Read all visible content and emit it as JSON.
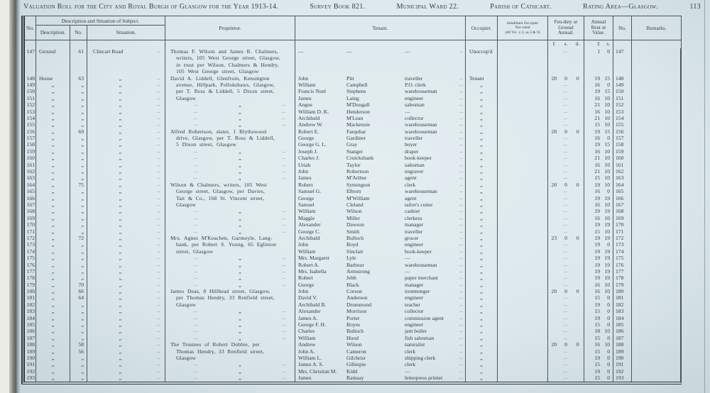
{
  "page": {
    "title_main": "Valuation Roll for the City and Royal Burgh of Glasgow for the Year 1913-14.",
    "title_survey": "Survey Book 821.",
    "title_ward": "Municipal Ward 22.",
    "title_parish": "Parish of Cathcart.",
    "title_rating": "Rating Area—Glasgow.",
    "page_number": "113"
  },
  "glyphs": {
    "ditto": "„",
    "dots": "..",
    "dash": "—"
  },
  "header": {
    "no": "No.",
    "desc_group": "Description and Situation of Subject.",
    "description": "Description.",
    "no2": "No.",
    "situation": "Situation.",
    "proprietor": "Proprietor.",
    "tenant": "Tenant.",
    "occupier": "Occupier.",
    "inhabitant_line1": "Inhabitant Occupier",
    "inhabitant_line2": "Not rated",
    "inhabitant_line3": "(48 Vic. c.3, ss.3 & 9)",
    "feu": "Feu-duty or Ground Annual.",
    "rent": "Annual Rent or Value.",
    "no_right": "No.",
    "remarks": "Remarks.",
    "feu_units": [
      "£",
      "s.",
      "d."
    ],
    "rent_units": [
      "£",
      "s."
    ]
  },
  "rows": [
    {
      "no": "147",
      "d": "Ground",
      "n2": "61",
      "s": "Clincart Road",
      "p": "Thomas F. Wilson and James R. Chalmers,",
      "ps": "t",
      "t": [
        "—",
        "—",
        "—"
      ],
      "o": "Unoccup'd",
      "r": [
        "1",
        "0"
      ]
    },
    {
      "p": "writers, 105 West George street, Glasgow,",
      "ps": "c"
    },
    {
      "p": "in trust per Wilson, Chalmers & Hendry,",
      "ps": "c"
    },
    {
      "p": "105 West George street, Glasgow",
      "ps": "c"
    },
    {
      "no": "148",
      "d": "House",
      "n2": "63",
      "p": "David A. Liddell, Glenfruin, Kensington",
      "ps": "t",
      "t": [
        "John",
        "Pitt",
        "traveller"
      ],
      "o": "Tenant",
      "f": [
        "20",
        "0",
        "0"
      ],
      "r": [
        "19",
        "15"
      ]
    },
    {
      "no": "149",
      "p": "avenue, Hillpark, Pollokshaws, Glasgow,",
      "ps": "c",
      "t": [
        "William",
        "Campbell",
        "P.O. clerk"
      ],
      "r": [
        "16",
        "0"
      ]
    },
    {
      "no": "150",
      "p": "per T. Ross & Liddell, 5 Dixon street,",
      "ps": "c",
      "t": [
        "Francis Noel",
        "Stephens",
        "warehouseman"
      ],
      "r": [
        "19",
        "15"
      ]
    },
    {
      "no": "151",
      "p": "Glasgow",
      "ps": "c",
      "t": [
        "James",
        "Laing",
        "engineer"
      ],
      "r": [
        "16",
        "10"
      ]
    },
    {
      "no": "152",
      "t": [
        "Angus",
        "M'Dougall",
        "salesman"
      ],
      "r": [
        "21",
        "10"
      ]
    },
    {
      "no": "153",
      "t": [
        "William D. K.",
        "Henderson",
        "—"
      ],
      "r": [
        "16",
        "10"
      ]
    },
    {
      "no": "154",
      "t": [
        "Archibald",
        "M'Lean",
        "collector"
      ],
      "r": [
        "21",
        "10"
      ]
    },
    {
      "no": "155",
      "t": [
        "Andrew W.",
        "Mackenzie",
        "warehouseman"
      ],
      "r": [
        "15",
        "10"
      ]
    },
    {
      "no": "156",
      "n2": "69",
      "p": "Alfred Robertson, slater, 1 Blythswood",
      "ps": "t",
      "t": [
        "Robert E.",
        "Farquhar",
        "warehouseman"
      ],
      "f": [
        "20",
        "0",
        "0"
      ],
      "r": [
        "19",
        "15"
      ]
    },
    {
      "no": "157",
      "p": "drive, Glasgow, per T. Ross & Liddell,",
      "ps": "c",
      "t": [
        "George",
        "Gardiner",
        "traveller"
      ],
      "r": [
        "16",
        "0"
      ]
    },
    {
      "no": "158",
      "p": "5 Dixon street, Glasgow",
      "ps": "c",
      "t": [
        "George G. L.",
        "Gray",
        "buyer"
      ],
      "r": [
        "19",
        "15"
      ]
    },
    {
      "no": "159",
      "t": [
        "Joseph J.",
        "Stanger",
        "draper"
      ],
      "r": [
        "16",
        "10"
      ]
    },
    {
      "no": "160",
      "t": [
        "Charles J.",
        "Cruickshank",
        "book-keeper"
      ],
      "r": [
        "21",
        "10"
      ]
    },
    {
      "no": "161",
      "t": [
        "Uriah",
        "Taylor",
        "salesman"
      ],
      "r": [
        "16",
        "10"
      ]
    },
    {
      "no": "162",
      "t": [
        "John",
        "Robertson",
        "engraver"
      ],
      "r": [
        "21",
        "10"
      ]
    },
    {
      "no": "163",
      "t": [
        "James",
        "M'Arthur",
        "agent"
      ],
      "r": [
        "15",
        "10"
      ]
    },
    {
      "no": "164",
      "n2": "75",
      "p": "Wilson & Chalmers, writers, 105 West",
      "ps": "t",
      "t": [
        "Robert",
        "Symington",
        "clerk"
      ],
      "f": [
        "20",
        "0",
        "0"
      ],
      "r": [
        "19",
        "10"
      ]
    },
    {
      "no": "165",
      "p": "George street, Glasgow, per Davies,",
      "ps": "c",
      "t": [
        "Samuel G.",
        "Elborn",
        "warehouseman"
      ],
      "r": [
        "16",
        "0"
      ]
    },
    {
      "no": "166",
      "p": "Tait & Co., 168 St. Vincent street,",
      "ps": "c",
      "t": [
        "George",
        "M'William",
        "agent"
      ],
      "r": [
        "19",
        "19"
      ]
    },
    {
      "no": "167",
      "p": "Glasgow",
      "ps": "c",
      "t": [
        "Samuel",
        "Cleland",
        "tailor's cutter"
      ],
      "r": [
        "16",
        "10"
      ]
    },
    {
      "no": "168",
      "t": [
        "William",
        "Wilson",
        "cashier"
      ],
      "r": [
        "19",
        "19"
      ]
    },
    {
      "no": "169",
      "t": [
        "Maggie",
        "Miller",
        "clerkess"
      ],
      "r": [
        "16",
        "10"
      ]
    },
    {
      "no": "170",
      "t": [
        "Alexander",
        "Dawson",
        "manager"
      ],
      "r": [
        "19",
        "19"
      ]
    },
    {
      "no": "171",
      "t": [
        "George C.",
        "Smith",
        "traveller"
      ],
      "r": [
        "15",
        "10"
      ]
    },
    {
      "no": "172",
      "n2": "72",
      "p": "Mrs. Agnes M'Keachen, Garmoyle, Lang-",
      "ps": "t",
      "t": [
        "Archibald",
        "Bulloch",
        "grocer"
      ],
      "f": [
        "23",
        "0",
        "0"
      ],
      "r": [
        "19",
        "19"
      ]
    },
    {
      "no": "173",
      "p": "bank, per Robert S. Young, 65 Eglinton",
      "ps": "c",
      "t": [
        "John",
        "Boyd",
        "engineer"
      ],
      "r": [
        "19",
        "0"
      ]
    },
    {
      "no": "174",
      "p": "street, Glasgow",
      "ps": "c",
      "t": [
        "William",
        "Sinclair",
        "book-keeper"
      ],
      "r": [
        "19",
        "19"
      ]
    },
    {
      "no": "175",
      "t": [
        "Mrs. Margaret",
        "Lyle",
        "—"
      ],
      "r": [
        "19",
        "19"
      ]
    },
    {
      "no": "176",
      "t": [
        "Robert A.",
        "Barbour",
        "warehouseman"
      ],
      "r": [
        "19",
        "19"
      ]
    },
    {
      "no": "177",
      "t": [
        "Mrs. Isabella",
        "Armstrong",
        "—"
      ],
      "r": [
        "19",
        "19"
      ]
    },
    {
      "no": "178",
      "t": [
        "Robert",
        "Jebb",
        "paper merchant"
      ],
      "r": [
        "19",
        "19"
      ]
    },
    {
      "no": "179",
      "n2": "70",
      "t": [
        "George",
        "Black",
        "manager"
      ],
      "r": [
        "16",
        "10"
      ]
    },
    {
      "no": "180",
      "n2": "66",
      "p": "James Deas, 8 Hillhead street, Glasgow,",
      "ps": "t",
      "t": [
        "John",
        "Corson",
        "ironmonger"
      ],
      "f": [
        "20",
        "0",
        "0"
      ],
      "r": [
        "16",
        "10"
      ]
    },
    {
      "no": "181",
      "n2": "64",
      "p": "per Thomas Hendry, 33 Renfield street,",
      "ps": "c",
      "t": [
        "David V.",
        "Anderson",
        "engineer"
      ],
      "r": [
        "15",
        "0"
      ]
    },
    {
      "no": "182",
      "p": "Glasgow",
      "ps": "c",
      "t": [
        "Archibald B.",
        "Drummond",
        "teacher"
      ],
      "r": [
        "19",
        "0"
      ]
    },
    {
      "no": "183",
      "t": [
        "Alexander",
        "Morrison",
        "collector"
      ],
      "r": [
        "15",
        "0"
      ]
    },
    {
      "no": "184",
      "t": [
        "James A.",
        "Porter",
        "commission agent"
      ],
      "r": [
        "19",
        "0"
      ]
    },
    {
      "no": "185",
      "t": [
        "George F. H.",
        "Boyes",
        "engineer"
      ],
      "r": [
        "15",
        "0"
      ]
    },
    {
      "no": "186",
      "t": [
        "Charles",
        "Bulloch",
        "jam boiler"
      ],
      "r": [
        "18",
        "10"
      ]
    },
    {
      "no": "187",
      "t": [
        "William",
        "Hood",
        "fish salesman"
      ],
      "r": [
        "15",
        "0"
      ]
    },
    {
      "no": "188",
      "n2": "58",
      "p": "The Trustees of Robert Dobbie, per",
      "ps": "t",
      "t": [
        "Andrew",
        "Wilson",
        "naturalist"
      ],
      "f": [
        "20",
        "0",
        "0"
      ],
      "r": [
        "16",
        "10"
      ]
    },
    {
      "no": "189",
      "n2": "56",
      "p": "Thomas Hendry, 33 Renfield street,",
      "ps": "c",
      "t": [
        "John A.",
        "Cameron",
        "clerk"
      ],
      "r": [
        "15",
        "0"
      ]
    },
    {
      "no": "190",
      "p": "Glasgow",
      "ps": "c",
      "t": [
        "William L.",
        "Gilchrist",
        "shipping clerk"
      ],
      "r": [
        "19",
        "0"
      ]
    },
    {
      "no": "191",
      "t": [
        "James A. S.",
        "Gillespie",
        "clerk"
      ],
      "r": [
        "15",
        "0"
      ]
    },
    {
      "no": "192",
      "t": [
        "Mrs. Christian M.",
        "Kidd",
        "—"
      ],
      "r": [
        "19",
        "0"
      ]
    },
    {
      "no": "193",
      "t": [
        "James",
        "Ramsay",
        "letterpress printer"
      ],
      "r": [
        "15",
        "0"
      ]
    }
  ]
}
